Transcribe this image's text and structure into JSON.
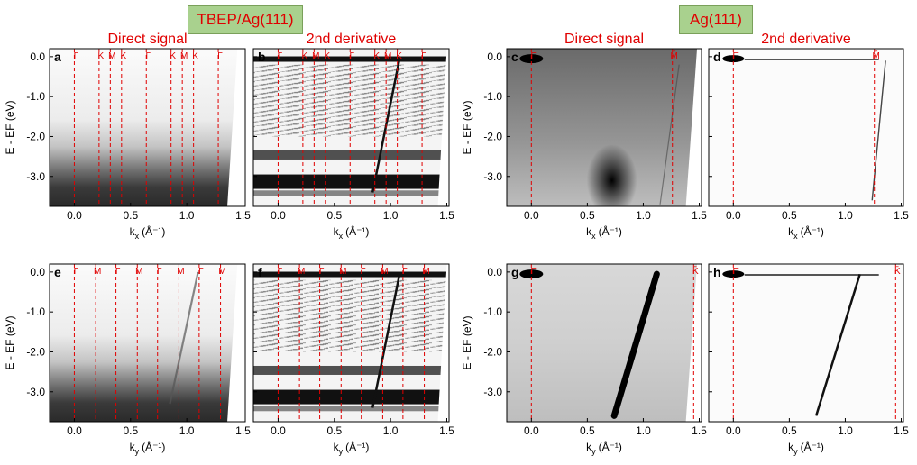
{
  "header": {
    "left_label": "TBEP/Ag(111)",
    "right_label": "Ag(111)"
  },
  "column_titles": {
    "direct": "Direct signal",
    "derivative": "2nd derivative"
  },
  "colors": {
    "title_red": "#e00000",
    "marker_red": "#e00000",
    "header_green": "#a9d18e",
    "axis": "#000000"
  },
  "chart_data": [
    {
      "id": "a",
      "type": "heatmap",
      "panel_label": "a",
      "title": "Direct signal",
      "xlabel_main": "k",
      "xlabel_sub": "x",
      "xlabel_unit": "(Å⁻¹)",
      "ylabel": "E - EF (eV)",
      "xlim": [
        -0.22,
        1.52
      ],
      "ylim": [
        -3.75,
        0.2
      ],
      "xticks": [
        "0.0",
        "0.5",
        "1.0",
        "1.5"
      ],
      "yticks": [
        "0.0",
        "-1.0",
        "-2.0",
        "-3.0"
      ],
      "markers": [
        {
          "x": 0.0,
          "label": "Γ"
        },
        {
          "x": 0.22,
          "label": "K"
        },
        {
          "x": 0.32,
          "label": "M"
        },
        {
          "x": 0.42,
          "label": "K"
        },
        {
          "x": 0.64,
          "label": "Γ"
        },
        {
          "x": 0.86,
          "label": "K"
        },
        {
          "x": 0.96,
          "label": "M"
        },
        {
          "x": 1.06,
          "label": "K"
        },
        {
          "x": 1.28,
          "label": "Γ"
        }
      ]
    },
    {
      "id": "b",
      "type": "heatmap",
      "panel_label": "b",
      "title": "2nd derivative",
      "xlabel_main": "k",
      "xlabel_sub": "x",
      "xlabel_unit": "(Å⁻¹)",
      "ylabel": "",
      "xlim": [
        -0.22,
        1.52
      ],
      "ylim": [
        -3.75,
        0.2
      ],
      "xticks": [
        "0.0",
        "0.5",
        "1.0",
        "1.5"
      ],
      "yticks": [],
      "markers": [
        {
          "x": 0.0,
          "label": "Γ"
        },
        {
          "x": 0.22,
          "label": "K"
        },
        {
          "x": 0.32,
          "label": "M"
        },
        {
          "x": 0.42,
          "label": "K"
        },
        {
          "x": 0.64,
          "label": "Γ"
        },
        {
          "x": 0.86,
          "label": "K"
        },
        {
          "x": 0.96,
          "label": "M"
        },
        {
          "x": 1.06,
          "label": "K"
        },
        {
          "x": 1.28,
          "label": "Γ"
        }
      ]
    },
    {
      "id": "c",
      "type": "heatmap",
      "panel_label": "c",
      "title": "Direct signal",
      "xlabel_main": "k",
      "xlabel_sub": "x",
      "xlabel_unit": "(Å⁻¹)",
      "ylabel": "E - EF (eV)",
      "xlim": [
        -0.22,
        1.52
      ],
      "ylim": [
        -3.75,
        0.2
      ],
      "xticks": [
        "0.0",
        "0.5",
        "1.0",
        "1.5"
      ],
      "yticks": [
        "0.0",
        "-1.0",
        "-2.0",
        "-3.0"
      ],
      "markers": [
        {
          "x": 0.0,
          "label": "Γ̄"
        },
        {
          "x": 1.26,
          "label": "M̄"
        }
      ]
    },
    {
      "id": "d",
      "type": "heatmap",
      "panel_label": "d",
      "title": "2nd derivative",
      "xlabel_main": "k",
      "xlabel_sub": "x",
      "xlabel_unit": "(Å⁻¹)",
      "ylabel": "",
      "xlim": [
        -0.22,
        1.52
      ],
      "ylim": [
        -3.75,
        0.2
      ],
      "xticks": [
        "0.0",
        "0.5",
        "1.0",
        "1.5"
      ],
      "yticks": [],
      "markers": [
        {
          "x": 0.0,
          "label": "Γ̄"
        },
        {
          "x": 1.26,
          "label": "M̄"
        }
      ]
    },
    {
      "id": "e",
      "type": "heatmap",
      "panel_label": "e",
      "title": "",
      "xlabel_main": "k",
      "xlabel_sub": "y",
      "xlabel_unit": "(Å⁻¹)",
      "ylabel": "E - EF (eV)",
      "xlim": [
        -0.22,
        1.52
      ],
      "ylim": [
        -3.75,
        0.2
      ],
      "xticks": [
        "0.0",
        "0.5",
        "1.0",
        "1.5"
      ],
      "yticks": [
        "0.0",
        "-1.0",
        "-2.0",
        "-3.0"
      ],
      "markers": [
        {
          "x": 0.0,
          "label": "Γ"
        },
        {
          "x": 0.19,
          "label": "M"
        },
        {
          "x": 0.37,
          "label": "Γ"
        },
        {
          "x": 0.56,
          "label": "M"
        },
        {
          "x": 0.74,
          "label": "Γ"
        },
        {
          "x": 0.93,
          "label": "M"
        },
        {
          "x": 1.11,
          "label": "Γ"
        },
        {
          "x": 1.3,
          "label": "M"
        }
      ]
    },
    {
      "id": "f",
      "type": "heatmap",
      "panel_label": "f",
      "title": "",
      "xlabel_main": "k",
      "xlabel_sub": "y",
      "xlabel_unit": "(Å⁻¹)",
      "ylabel": "",
      "xlim": [
        -0.22,
        1.52
      ],
      "ylim": [
        -3.75,
        0.2
      ],
      "xticks": [
        "0.0",
        "0.5",
        "1.0",
        "1.5"
      ],
      "yticks": [],
      "markers": [
        {
          "x": 0.0,
          "label": "Γ"
        },
        {
          "x": 0.19,
          "label": "M"
        },
        {
          "x": 0.37,
          "label": "Γ"
        },
        {
          "x": 0.56,
          "label": "M"
        },
        {
          "x": 0.74,
          "label": "Γ"
        },
        {
          "x": 0.93,
          "label": "M"
        },
        {
          "x": 1.11,
          "label": "Γ"
        },
        {
          "x": 1.3,
          "label": "M"
        }
      ]
    },
    {
      "id": "g",
      "type": "heatmap",
      "panel_label": "g",
      "title": "",
      "xlabel_main": "k",
      "xlabel_sub": "y",
      "xlabel_unit": "(Å⁻¹)",
      "ylabel": "E - EF (eV)",
      "xlim": [
        -0.22,
        1.52
      ],
      "ylim": [
        -3.75,
        0.2
      ],
      "xticks": [
        "0.0",
        "0.5",
        "1.0",
        "1.5"
      ],
      "yticks": [
        "0.0",
        "-1.0",
        "-2.0",
        "-3.0"
      ],
      "markers": [
        {
          "x": 0.0,
          "label": "Γ̄"
        },
        {
          "x": 1.45,
          "label": "K̄"
        }
      ]
    },
    {
      "id": "h",
      "type": "heatmap",
      "panel_label": "h",
      "title": "",
      "xlabel_main": "k",
      "xlabel_sub": "y",
      "xlabel_unit": "(Å⁻¹)",
      "ylabel": "",
      "xlim": [
        -0.22,
        1.52
      ],
      "ylim": [
        -3.75,
        0.2
      ],
      "xticks": [
        "0.0",
        "0.5",
        "1.0",
        "1.5"
      ],
      "yticks": [],
      "markers": [
        {
          "x": 0.0,
          "label": "Γ̄"
        },
        {
          "x": 1.45,
          "label": "K̄"
        }
      ]
    }
  ]
}
